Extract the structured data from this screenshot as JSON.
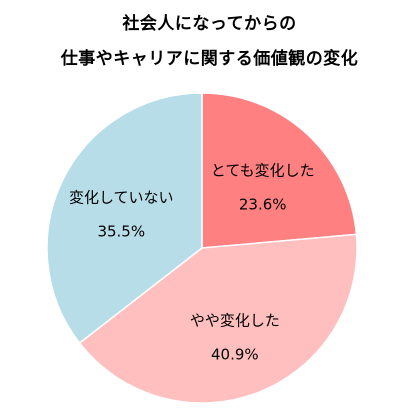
{
  "chart_data": {
    "type": "pie",
    "title_lines": [
      "社会人になってからの",
      "仕事やキャリアに関する価値観の変化"
    ],
    "start_angle_deg": 0,
    "direction": "clockwise",
    "slices": [
      {
        "label": "とても変化した",
        "value": 23.6,
        "value_label": "23.6%",
        "color": "#FF8080"
      },
      {
        "label": "やや変化した",
        "value": 40.9,
        "value_label": "40.9%",
        "color": "#FFBFBF"
      },
      {
        "label": "変化していない",
        "value": 35.5,
        "value_label": "35.5%",
        "color": "#B7DDE8"
      }
    ]
  }
}
